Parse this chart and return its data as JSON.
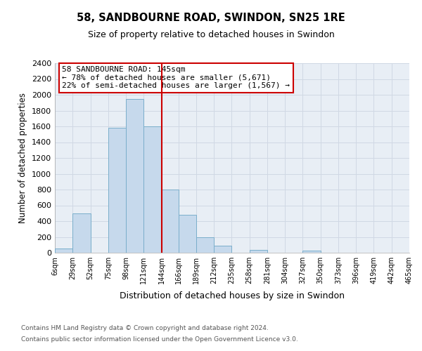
{
  "title": "58, SANDBOURNE ROAD, SWINDON, SN25 1RE",
  "subtitle": "Size of property relative to detached houses in Swindon",
  "xlabel": "Distribution of detached houses by size in Swindon",
  "ylabel": "Number of detached properties",
  "bar_color": "#c6d9ec",
  "bar_edge_color": "#7aaecb",
  "vline_x": 144,
  "vline_color": "#cc0000",
  "bin_edges": [
    6,
    29,
    52,
    75,
    98,
    121,
    144,
    166,
    189,
    212,
    235,
    258,
    281,
    304,
    327,
    350,
    373,
    396,
    419,
    442,
    465
  ],
  "bin_labels": [
    "6sqm",
    "29sqm",
    "52sqm",
    "75sqm",
    "98sqm",
    "121sqm",
    "144sqm",
    "166sqm",
    "189sqm",
    "212sqm",
    "235sqm",
    "258sqm",
    "281sqm",
    "304sqm",
    "327sqm",
    "350sqm",
    "373sqm",
    "396sqm",
    "419sqm",
    "442sqm",
    "465sqm"
  ],
  "bar_heights": [
    55,
    500,
    0,
    1580,
    1950,
    1600,
    800,
    480,
    195,
    85,
    0,
    35,
    0,
    0,
    30,
    0,
    0,
    0,
    0,
    0
  ],
  "ylim": [
    0,
    2400
  ],
  "yticks": [
    0,
    200,
    400,
    600,
    800,
    1000,
    1200,
    1400,
    1600,
    1800,
    2000,
    2200,
    2400
  ],
  "annotation_title": "58 SANDBOURNE ROAD: 145sqm",
  "annotation_line1": "← 78% of detached houses are smaller (5,671)",
  "annotation_line2": "22% of semi-detached houses are larger (1,567) →",
  "annotation_box_color": "#ffffff",
  "annotation_box_edge": "#cc0000",
  "footer1": "Contains HM Land Registry data © Crown copyright and database right 2024.",
  "footer2": "Contains public sector information licensed under the Open Government Licence v3.0.",
  "bg_color": "#e8eef5"
}
